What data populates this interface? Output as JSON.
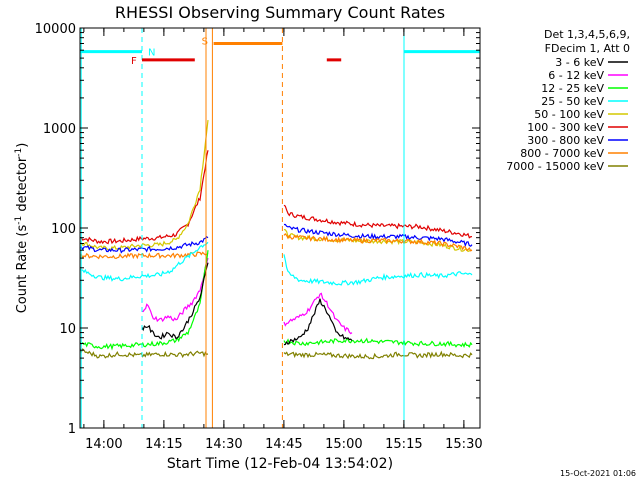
{
  "chart_data": {
    "type": "line",
    "title": "RHESSI Observing Summary Count Rates",
    "xlabel": "Start Time (12-Feb-04 13:54:02)",
    "ylabel_parts": [
      "Count Rate (s",
      "-1",
      " detector",
      "-1",
      ")"
    ],
    "y_scale": "log",
    "ylim": [
      1,
      10000
    ],
    "xlim_minutes_after_start": [
      0,
      100
    ],
    "x_ticks": [
      {
        "label": "14:00",
        "t": 5.97
      },
      {
        "label": "14:15",
        "t": 20.97
      },
      {
        "label": "14:30",
        "t": 35.97
      },
      {
        "label": "14:45",
        "t": 50.97
      },
      {
        "label": "15:00",
        "t": 65.97
      },
      {
        "label": "15:15",
        "t": 80.97
      },
      {
        "label": "15:30",
        "t": 95.97
      }
    ],
    "y_ticks": [
      {
        "label": "1",
        "v": 1
      },
      {
        "label": "10",
        "v": 10
      },
      {
        "label": "100",
        "v": 100
      },
      {
        "label": "1000",
        "v": 1000
      },
      {
        "label": "10000",
        "v": 10000
      }
    ],
    "legend": {
      "position": "right",
      "header": [
        "Det 1,3,4,5,6,9,",
        "FDecim 1, Att 0"
      ],
      "entries": [
        {
          "label": "3 - 6 keV",
          "color": "#000000"
        },
        {
          "label": "6 - 12 keV",
          "color": "#ff00ff"
        },
        {
          "label": "12 - 25 keV",
          "color": "#00ff00"
        },
        {
          "label": "25 - 50 keV",
          "color": "#00ffff"
        },
        {
          "label": "50 - 100 keV",
          "color": "#d4c800"
        },
        {
          "label": "100 - 300 keV",
          "color": "#e00000"
        },
        {
          "label": "300 - 800 keV",
          "color": "#0000ff"
        },
        {
          "label": "800 - 7000 keV",
          "color": "#ff8000"
        },
        {
          "label": "7000 - 15000 keV",
          "color": "#808000"
        }
      ]
    },
    "flag_labels": {
      "N": "N",
      "F": "F",
      "S": "S"
    },
    "flag_colors": {
      "night": "#00ffff",
      "flare": "#e00000",
      "saa": "#ff8000"
    },
    "flag_levels": {
      "night": 5800,
      "flare": 4800,
      "saa": 7000
    },
    "night_intervals": [
      [
        0,
        15.5
      ],
      [
        81,
        100
      ]
    ],
    "flare_intervals": [
      [
        15.5,
        28.7
      ],
      [
        61.7,
        65.3
      ]
    ],
    "saa_intervals": [
      [
        33.4,
        50.6
      ]
    ],
    "gap": [
      32,
      51
    ],
    "series": [
      {
        "name": "100 - 300 keV",
        "color": "#e00000",
        "segs": [
          [
            [
              0,
              80
            ],
            [
              5,
              73
            ],
            [
              10,
              74
            ],
            [
              15,
              78
            ],
            [
              20,
              80
            ],
            [
              24,
              86
            ],
            [
              27,
              110
            ],
            [
              30,
              200
            ],
            [
              32,
              600
            ]
          ],
          [
            [
              51,
              170
            ],
            [
              52,
              140
            ],
            [
              55,
              130
            ],
            [
              60,
              121
            ],
            [
              65,
              113
            ],
            [
              70,
              108
            ],
            [
              75,
              105
            ],
            [
              80,
              104
            ],
            [
              85,
              103
            ],
            [
              90,
              95
            ],
            [
              95,
              88
            ],
            [
              98,
              82
            ]
          ]
        ]
      },
      {
        "name": "50 - 100 keV",
        "color": "#d4c800",
        "segs": [
          [
            [
              0,
              72
            ],
            [
              5,
              63
            ],
            [
              10,
              63
            ],
            [
              15,
              67
            ],
            [
              20,
              68
            ],
            [
              24,
              76
            ],
            [
              27,
              110
            ],
            [
              30,
              250
            ],
            [
              32,
              1200
            ]
          ],
          [
            [
              51,
              95
            ],
            [
              52,
              85
            ],
            [
              55,
              80
            ],
            [
              60,
              78
            ],
            [
              65,
              76
            ],
            [
              70,
              74
            ],
            [
              75,
              74
            ],
            [
              80,
              73
            ],
            [
              85,
              72
            ],
            [
              90,
              68
            ],
            [
              95,
              62
            ],
            [
              98,
              60
            ]
          ]
        ]
      },
      {
        "name": "300 - 800 keV",
        "color": "#0000ff",
        "segs": [
          [
            [
              0,
              65
            ],
            [
              5,
              60
            ],
            [
              10,
              60
            ],
            [
              15,
              61
            ],
            [
              20,
              62
            ],
            [
              24,
              64
            ],
            [
              27,
              68
            ],
            [
              30,
              72
            ],
            [
              32,
              80
            ]
          ],
          [
            [
              51,
              110
            ],
            [
              52,
              100
            ],
            [
              55,
              95
            ],
            [
              60,
              90
            ],
            [
              65,
              86
            ],
            [
              70,
              83
            ],
            [
              75,
              82
            ],
            [
              80,
              82
            ],
            [
              85,
              80
            ],
            [
              90,
              78
            ],
            [
              95,
              72
            ],
            [
              98,
              68
            ]
          ]
        ]
      },
      {
        "name": "800 - 7000 keV",
        "color": "#ff8000",
        "segs": [
          [
            [
              0,
              53
            ],
            [
              5,
              52
            ],
            [
              10,
              52
            ],
            [
              15,
              53
            ],
            [
              20,
              53
            ],
            [
              24,
              53
            ],
            [
              27,
              54
            ],
            [
              30,
              55
            ],
            [
              32,
              56
            ]
          ],
          [
            [
              51,
              85
            ],
            [
              52,
              82
            ],
            [
              55,
              80
            ],
            [
              60,
              78
            ],
            [
              65,
              76
            ],
            [
              70,
              75
            ],
            [
              75,
              75
            ],
            [
              80,
              74
            ],
            [
              85,
              73
            ],
            [
              90,
              70
            ],
            [
              95,
              65
            ],
            [
              98,
              60
            ]
          ]
        ]
      },
      {
        "name": "7000 - 15000 keV",
        "color": "#808000",
        "segs": [
          [
            [
              0,
              6
            ],
            [
              5,
              5.2
            ],
            [
              10,
              5.5
            ],
            [
              15,
              5.3
            ],
            [
              20,
              5.5
            ],
            [
              25,
              5.4
            ],
            [
              30,
              5.6
            ],
            [
              32,
              5.5
            ]
          ],
          [
            [
              51,
              5.5
            ],
            [
              55,
              5.4
            ],
            [
              60,
              5.4
            ],
            [
              65,
              5.3
            ],
            [
              70,
              5.2
            ],
            [
              75,
              5.2
            ],
            [
              80,
              5.5
            ],
            [
              85,
              5.3
            ],
            [
              90,
              5.5
            ],
            [
              95,
              5.3
            ],
            [
              98,
              5.4
            ]
          ]
        ]
      },
      {
        "name": "25 - 50 keV",
        "color": "#00ffff",
        "segs": [
          [
            [
              0,
              38
            ],
            [
              5,
              32
            ],
            [
              10,
              31
            ],
            [
              15,
              33
            ],
            [
              20,
              34
            ],
            [
              23,
              38
            ],
            [
              25,
              45
            ],
            [
              28,
              55
            ],
            [
              30,
              65
            ],
            [
              32,
              72
            ]
          ],
          [
            [
              51,
              55
            ],
            [
              52,
              35
            ],
            [
              55,
              30
            ],
            [
              60,
              29
            ],
            [
              65,
              28
            ],
            [
              70,
              29
            ],
            [
              75,
              32
            ],
            [
              80,
              33
            ],
            [
              85,
              34
            ],
            [
              90,
              33
            ],
            [
              95,
              35
            ],
            [
              98,
              34
            ]
          ]
        ]
      },
      {
        "name": "6 - 12 keV",
        "color": "#ff00ff",
        "segs": [
          [
            [
              15.5,
              15
            ],
            [
              17,
              17
            ],
            [
              18,
              13
            ],
            [
              20,
              12
            ],
            [
              22,
              13
            ],
            [
              24,
              12
            ],
            [
              26,
              15
            ],
            [
              28,
              18
            ],
            [
              30,
              24
            ],
            [
              32,
              50
            ]
          ],
          [
            [
              51,
              11
            ],
            [
              53,
              12
            ],
            [
              55,
              13
            ],
            [
              57,
              15
            ],
            [
              60,
              22
            ],
            [
              62,
              17
            ],
            [
              64,
              12
            ],
            [
              66,
              10
            ],
            [
              68,
              9
            ]
          ]
        ]
      },
      {
        "name": "12 - 25 keV",
        "color": "#00ff00",
        "segs": [
          [
            [
              0,
              7
            ],
            [
              5,
              6.5
            ],
            [
              10,
              6.6
            ],
            [
              15,
              6.8
            ],
            [
              20,
              7
            ],
            [
              24,
              7.5
            ],
            [
              27,
              9
            ],
            [
              30,
              17
            ],
            [
              32,
              60
            ]
          ],
          [
            [
              51,
              7.5
            ],
            [
              55,
              7
            ],
            [
              60,
              7.2
            ],
            [
              65,
              7.5
            ],
            [
              70,
              7.5
            ],
            [
              75,
              7.3
            ],
            [
              80,
              7.2
            ],
            [
              85,
              7
            ],
            [
              90,
              7
            ],
            [
              95,
              6.8
            ],
            [
              98,
              6.8
            ]
          ]
        ]
      },
      {
        "name": "3 - 6 keV",
        "color": "#000000",
        "segs": [
          [
            [
              15.5,
              10
            ],
            [
              17,
              10.5
            ],
            [
              18,
              9
            ],
            [
              20,
              8
            ],
            [
              22,
              9
            ],
            [
              24,
              8
            ],
            [
              26,
              10
            ],
            [
              28,
              14
            ],
            [
              30,
              20
            ],
            [
              32,
              45
            ]
          ],
          [
            [
              51,
              7
            ],
            [
              53,
              7.5
            ],
            [
              55,
              8
            ],
            [
              57,
              10
            ],
            [
              60,
              19
            ],
            [
              62,
              14
            ],
            [
              64,
              9
            ],
            [
              66,
              8
            ],
            [
              68,
              7.5
            ]
          ]
        ]
      }
    ]
  },
  "footer": {
    "date_stamp": "15-Oct-2021 01:06"
  }
}
